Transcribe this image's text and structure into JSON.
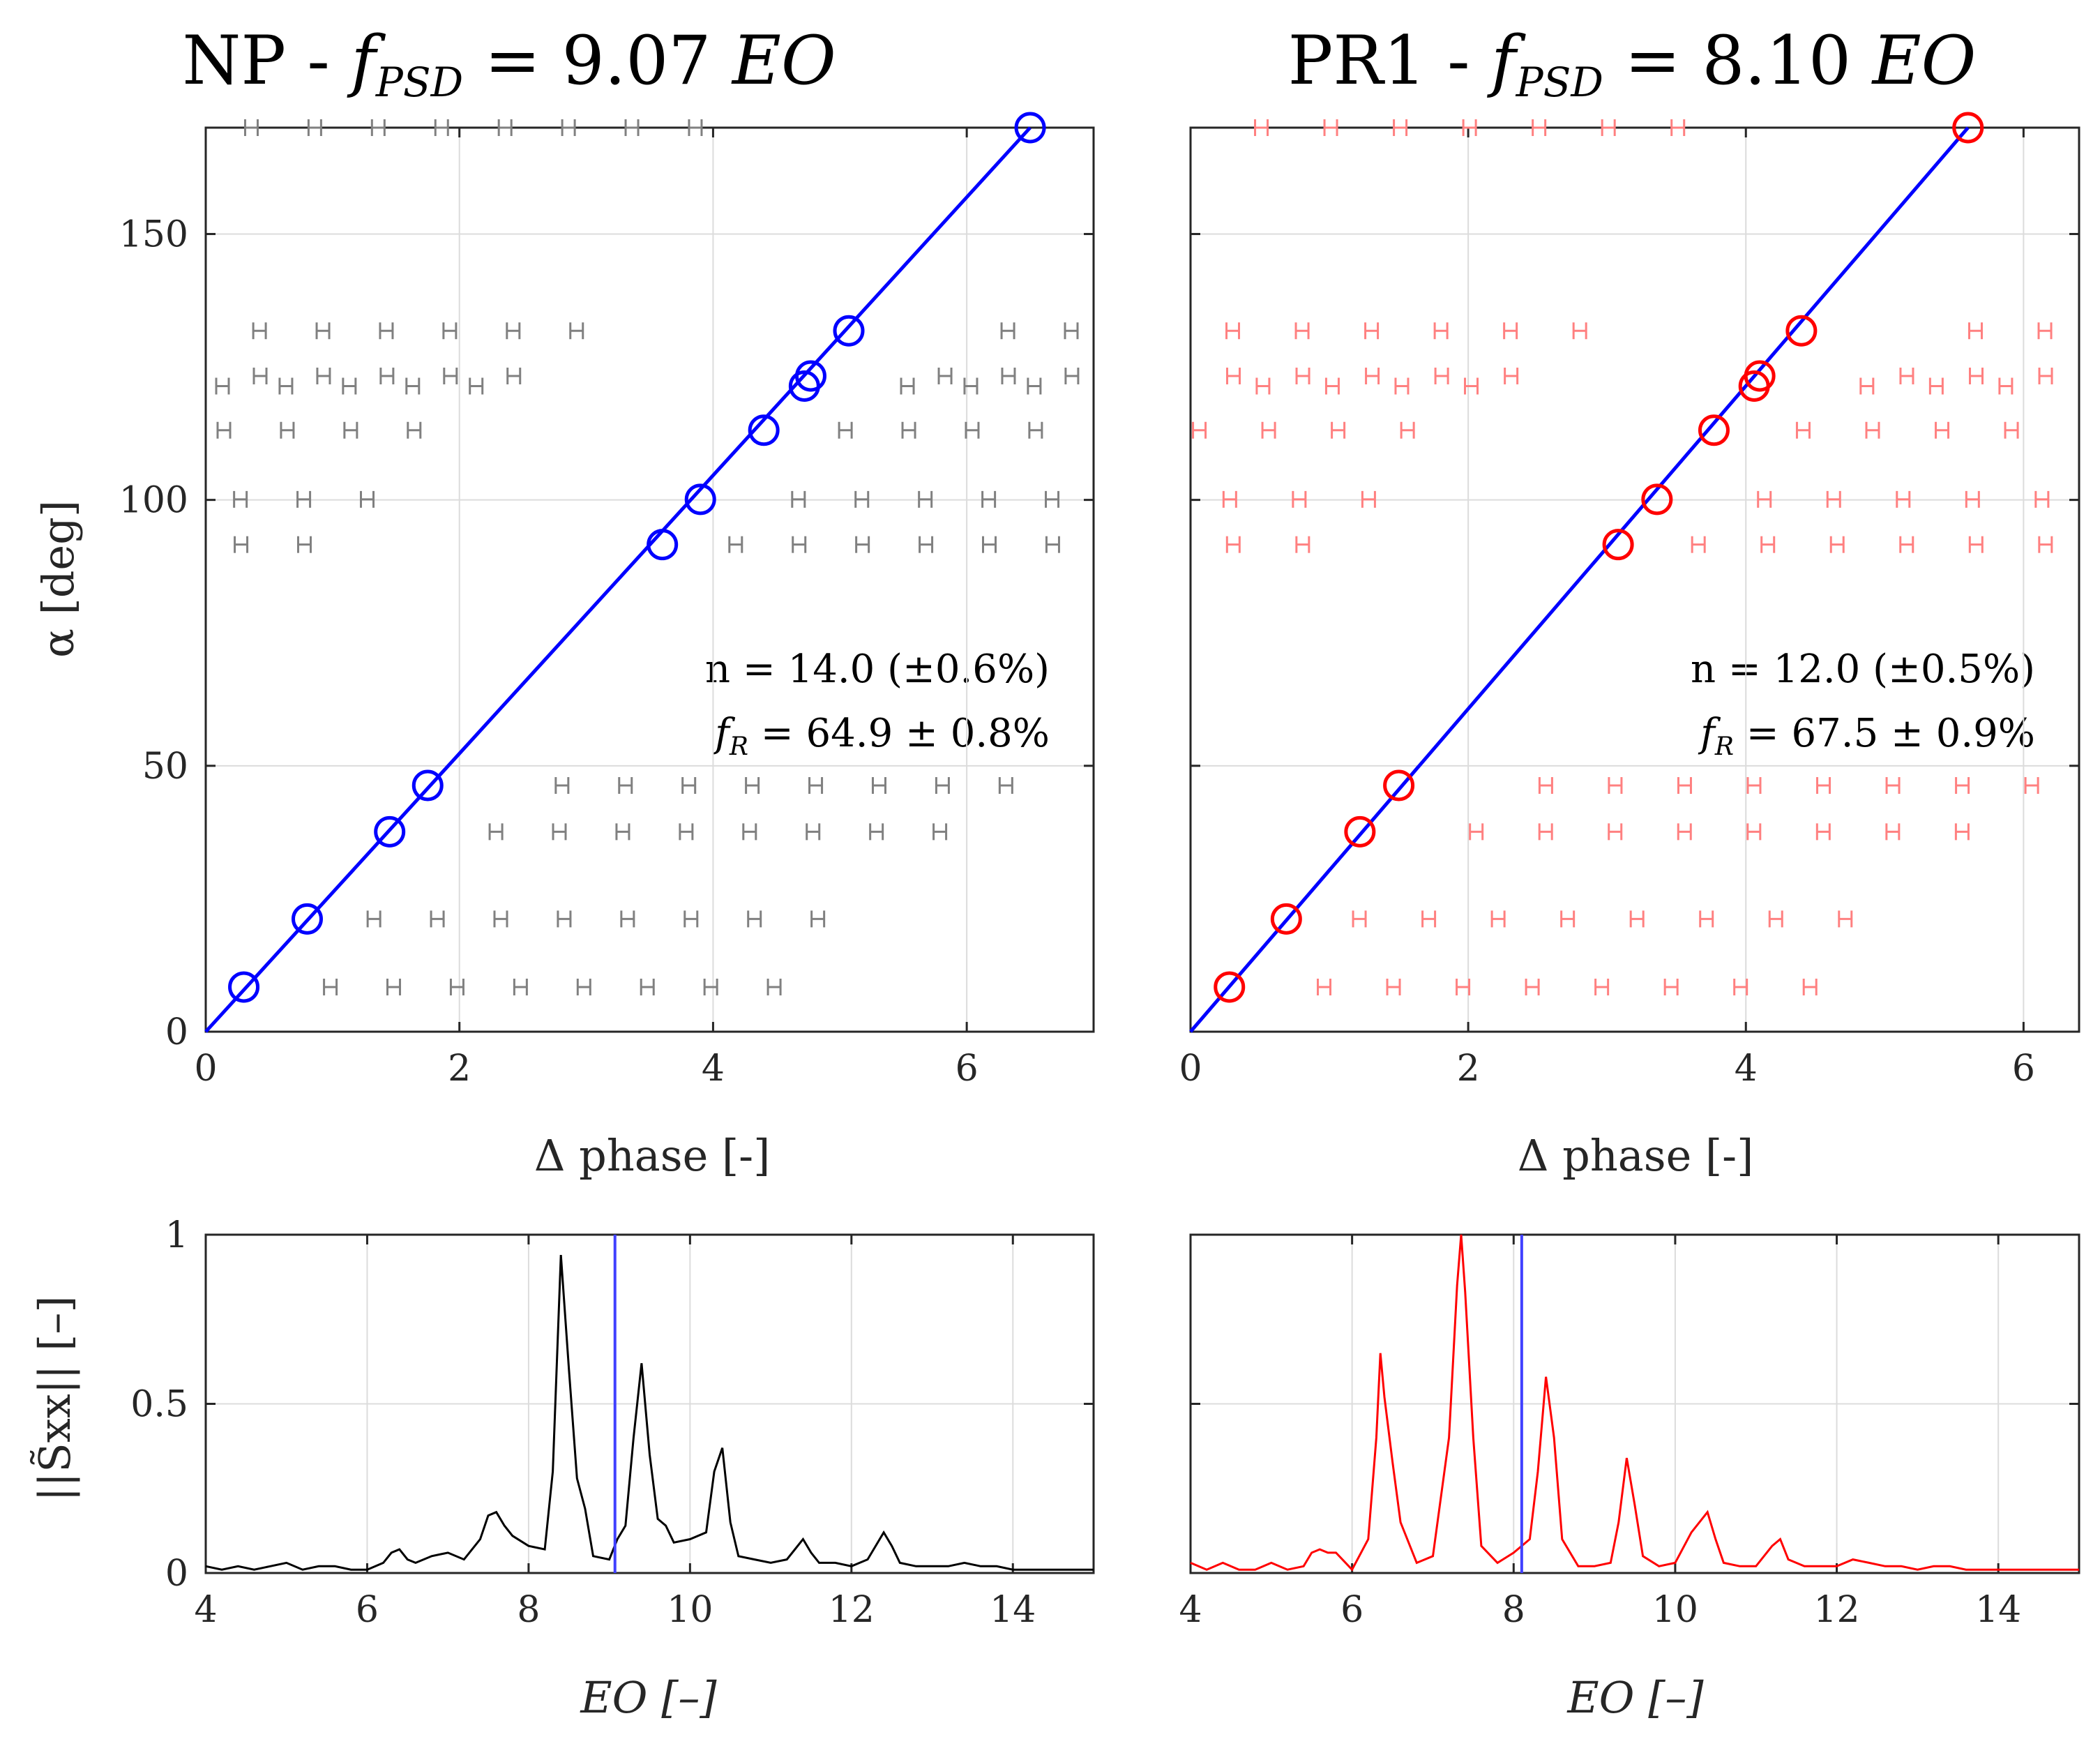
{
  "chart_data": [
    {
      "id": "np-phase",
      "type": "scatter",
      "title": {
        "main": "NP - ",
        "f": "f",
        "sub": "PSD",
        "eq": " = 9.07 ",
        "unit": "EO"
      },
      "xlabel": "Δ phase [-]",
      "ylabel": "α [deg]",
      "xlim": [
        0,
        7
      ],
      "ylim": [
        0,
        170
      ],
      "xticks": [
        "0",
        "2",
        "4",
        "6"
      ],
      "xtick_values": [
        0,
        2,
        4,
        6
      ],
      "yticks": [
        "0",
        "50",
        "100",
        "150"
      ],
      "ytick_values": [
        0,
        50,
        100,
        150
      ],
      "grid": true,
      "marker_color": "#0000ff",
      "alias_color": "#808080",
      "fit_color": "#0000ff",
      "points": [
        [
          0.3,
          8.4
        ],
        [
          0.8,
          21.2
        ],
        [
          1.45,
          37.6
        ],
        [
          1.75,
          46.3
        ],
        [
          3.6,
          91.6
        ],
        [
          3.9,
          100.1
        ],
        [
          4.4,
          113.1
        ],
        [
          4.72,
          121.4
        ],
        [
          4.77,
          123.3
        ],
        [
          5.07,
          131.8
        ],
        [
          6.5,
          170.0
        ]
      ],
      "fit_line": {
        "x": [
          0,
          6.5
        ],
        "y": [
          0,
          170
        ]
      },
      "alias_x_offset": 1.0,
      "alias_count": 8,
      "alias_x_max": 6.9,
      "annotation": {
        "line1": "n = 14.0 (±0.6%)",
        "line2_f": "f",
        "line2_sub": "R",
        "line2_rest": " = 64.9 ± 0.8%"
      }
    },
    {
      "id": "pr1-phase",
      "type": "scatter",
      "title": {
        "main": "PR1 - ",
        "f": "f",
        "sub": "PSD",
        "eq": " = 8.10 ",
        "unit": "EO"
      },
      "xlabel": "Δ phase [-]",
      "ylabel": "",
      "xlim": [
        0,
        6.4
      ],
      "ylim": [
        0,
        170
      ],
      "xticks": [
        "0",
        "2",
        "4",
        "6"
      ],
      "xtick_values": [
        0,
        2,
        4,
        6
      ],
      "yticks": [],
      "ytick_values": [
        0,
        50,
        100,
        150
      ],
      "grid": true,
      "marker_color": "#ff0000",
      "alias_color": "#ff8080",
      "fit_color": "#0000ff",
      "points": [
        [
          0.28,
          8.4
        ],
        [
          0.69,
          21.2
        ],
        [
          1.22,
          37.6
        ],
        [
          1.5,
          46.3
        ],
        [
          3.08,
          91.6
        ],
        [
          3.36,
          100.1
        ],
        [
          3.77,
          113.1
        ],
        [
          4.06,
          121.4
        ],
        [
          4.1,
          123.3
        ],
        [
          4.4,
          131.8
        ],
        [
          5.6,
          170.0
        ]
      ],
      "fit_line": {
        "x": [
          0,
          5.6
        ],
        "y": [
          0,
          170
        ]
      },
      "alias_x_offset": 1.0,
      "alias_count": 8,
      "alias_x_max": 6.35,
      "annotation": {
        "line1": "n = 12.0 (±0.5%)",
        "line2_f": "f",
        "line2_sub": "R",
        "line2_rest": " = 67.5 ± 0.9%"
      }
    },
    {
      "id": "np-psd",
      "type": "line",
      "xlabel": "EO [–]",
      "ylabel": "||S̃xx|| [–]",
      "xlim": [
        4,
        15
      ],
      "ylim": [
        0,
        1
      ],
      "xticks": [
        "4",
        "6",
        "8",
        "10",
        "12",
        "14"
      ],
      "xtick_values": [
        4,
        6,
        8,
        10,
        12,
        14
      ],
      "yticks": [
        "0",
        "0.5",
        "1"
      ],
      "ytick_values": [
        0,
        0.5,
        1
      ],
      "grid": true,
      "line_color": "#000000",
      "marker_x": 9.07,
      "marker_color": "#4040ff",
      "x": [
        4.0,
        4.2,
        4.4,
        4.6,
        4.8,
        5.0,
        5.2,
        5.4,
        5.6,
        5.8,
        6.0,
        6.2,
        6.3,
        6.4,
        6.5,
        6.6,
        6.8,
        7.0,
        7.2,
        7.4,
        7.5,
        7.6,
        7.7,
        7.8,
        8.0,
        8.2,
        8.3,
        8.4,
        8.5,
        8.6,
        8.7,
        8.8,
        9.0,
        9.1,
        9.2,
        9.3,
        9.4,
        9.5,
        9.6,
        9.7,
        9.8,
        10.0,
        10.2,
        10.3,
        10.4,
        10.5,
        10.6,
        10.8,
        11.0,
        11.2,
        11.4,
        11.5,
        11.6,
        11.8,
        12.0,
        12.2,
        12.4,
        12.5,
        12.6,
        12.8,
        13.0,
        13.2,
        13.4,
        13.6,
        13.8,
        14.0,
        14.5,
        15.0
      ],
      "y": [
        0.02,
        0.01,
        0.02,
        0.01,
        0.02,
        0.03,
        0.01,
        0.02,
        0.02,
        0.01,
        0.01,
        0.03,
        0.06,
        0.07,
        0.04,
        0.03,
        0.05,
        0.06,
        0.04,
        0.1,
        0.17,
        0.18,
        0.14,
        0.11,
        0.08,
        0.07,
        0.3,
        0.94,
        0.6,
        0.28,
        0.19,
        0.05,
        0.04,
        0.1,
        0.14,
        0.4,
        0.62,
        0.35,
        0.16,
        0.14,
        0.09,
        0.1,
        0.12,
        0.3,
        0.37,
        0.15,
        0.05,
        0.04,
        0.03,
        0.04,
        0.1,
        0.06,
        0.03,
        0.03,
        0.02,
        0.04,
        0.12,
        0.08,
        0.03,
        0.02,
        0.02,
        0.02,
        0.03,
        0.02,
        0.02,
        0.01,
        0.01,
        0.01
      ]
    },
    {
      "id": "pr1-psd",
      "type": "line",
      "xlabel": "EO [–]",
      "ylabel": "",
      "xlim": [
        4,
        15
      ],
      "ylim": [
        0,
        1
      ],
      "xticks": [
        "4",
        "6",
        "8",
        "10",
        "12",
        "14"
      ],
      "xtick_values": [
        4,
        6,
        8,
        10,
        12,
        14
      ],
      "yticks": [],
      "ytick_values": [
        0,
        0.5,
        1
      ],
      "grid": true,
      "line_color": "#ff0000",
      "marker_x": 8.1,
      "marker_color": "#4040ff",
      "x": [
        4.0,
        4.2,
        4.4,
        4.6,
        4.8,
        5.0,
        5.2,
        5.4,
        5.5,
        5.6,
        5.7,
        5.8,
        6.0,
        6.2,
        6.3,
        6.35,
        6.4,
        6.5,
        6.6,
        6.8,
        7.0,
        7.2,
        7.3,
        7.35,
        7.4,
        7.5,
        7.6,
        7.8,
        8.0,
        8.2,
        8.3,
        8.4,
        8.5,
        8.6,
        8.8,
        9.0,
        9.2,
        9.3,
        9.4,
        9.5,
        9.6,
        9.8,
        10.0,
        10.2,
        10.4,
        10.5,
        10.6,
        10.8,
        11.0,
        11.2,
        11.3,
        11.4,
        11.6,
        11.8,
        12.0,
        12.2,
        12.4,
        12.6,
        12.8,
        13.0,
        13.2,
        13.4,
        13.6,
        14.0,
        14.5,
        15.0
      ],
      "y": [
        0.03,
        0.01,
        0.03,
        0.01,
        0.01,
        0.03,
        0.01,
        0.02,
        0.06,
        0.07,
        0.06,
        0.06,
        0.01,
        0.1,
        0.4,
        0.65,
        0.52,
        0.33,
        0.15,
        0.03,
        0.05,
        0.4,
        0.85,
        1.0,
        0.83,
        0.4,
        0.08,
        0.03,
        0.06,
        0.1,
        0.3,
        0.58,
        0.4,
        0.1,
        0.02,
        0.02,
        0.03,
        0.15,
        0.34,
        0.2,
        0.05,
        0.02,
        0.03,
        0.12,
        0.18,
        0.1,
        0.03,
        0.02,
        0.02,
        0.08,
        0.1,
        0.04,
        0.02,
        0.02,
        0.02,
        0.04,
        0.03,
        0.02,
        0.02,
        0.01,
        0.02,
        0.02,
        0.01,
        0.01,
        0.01,
        0.01
      ]
    }
  ]
}
